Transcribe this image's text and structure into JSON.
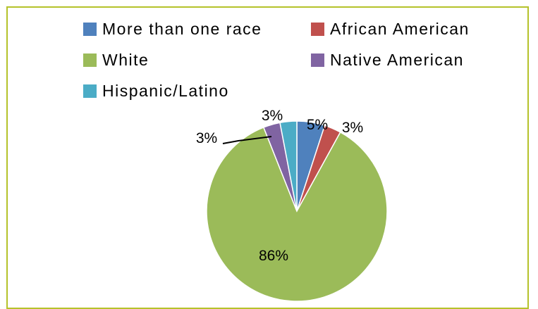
{
  "chart_data": {
    "type": "pie",
    "series": [
      {
        "name": "More than one race",
        "value": 5,
        "label": "5%",
        "color": "#4f81bd"
      },
      {
        "name": "African American",
        "value": 3,
        "label": "3%",
        "color": "#c0504d"
      },
      {
        "name": "White",
        "value": 86,
        "label": "86%",
        "color": "#9bbb59"
      },
      {
        "name": "Native American",
        "value": 3,
        "label": "3%",
        "color": "#8064a2"
      },
      {
        "name": "Hispanic/Latino",
        "value": 3,
        "label": "3%",
        "color": "#4bacc6"
      }
    ],
    "legend_position": "top"
  },
  "legend": {
    "items": [
      {
        "label": "More than one race",
        "color": "#4f81bd"
      },
      {
        "label": "African American",
        "color": "#c0504d"
      },
      {
        "label": "White",
        "color": "#9bbb59"
      },
      {
        "label": "Native American",
        "color": "#8064a2"
      },
      {
        "label": "Hispanic/Latino",
        "color": "#4bacc6"
      }
    ]
  },
  "border_color": "#b5c22a"
}
